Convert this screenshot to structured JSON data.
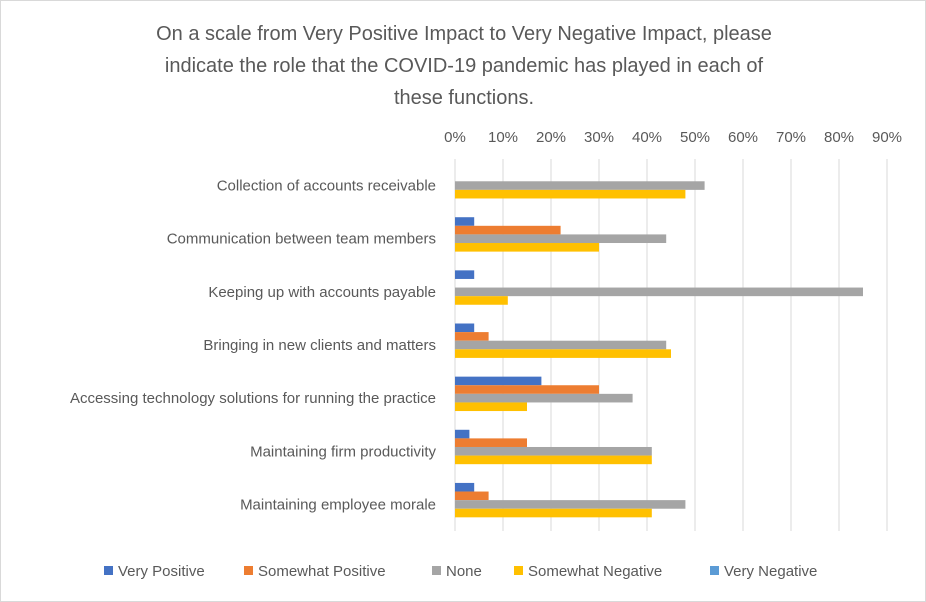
{
  "chart_data": {
    "type": "bar",
    "orientation": "horizontal",
    "title": "On a scale from Very Positive Impact to Very Negative Impact, please indicate the role that the COVID-19 pandemic has played in each of these functions.",
    "title_lines": [
      "On a scale from Very Positive Impact to Very Negative Impact, please",
      "indicate the role that the COVID-19 pandemic has played in each of",
      "these functions."
    ],
    "categories": [
      "Collection of accounts receivable",
      "Communication between team members",
      "Keeping up with accounts payable",
      "Bringing in new clients and matters",
      "Accessing technology solutions for running the practice",
      "Maintaining firm productivity",
      "Maintaining employee morale"
    ],
    "series": [
      {
        "name": "Very Positive",
        "color": "#4472c4",
        "values": [
          0,
          4,
          4,
          4,
          18,
          3,
          4
        ]
      },
      {
        "name": "Somewhat Positive",
        "color": "#ed7d31",
        "values": [
          0,
          22,
          0,
          7,
          30,
          15,
          7
        ]
      },
      {
        "name": "None",
        "color": "#a5a5a5",
        "values": [
          52,
          44,
          85,
          44,
          37,
          41,
          48
        ]
      },
      {
        "name": "Somewhat Negative",
        "color": "#ffc000",
        "values": [
          48,
          30,
          11,
          45,
          15,
          41,
          41
        ]
      },
      {
        "name": "Very Negative",
        "color": "#5b9bd5",
        "values": [
          0,
          0,
          0,
          0,
          0,
          0,
          0
        ]
      }
    ],
    "xlim": [
      0,
      90
    ],
    "xticks": [
      "0%",
      "10%",
      "20%",
      "30%",
      "40%",
      "50%",
      "60%",
      "70%",
      "80%",
      "90%"
    ],
    "value_unit": "%",
    "axis_position": "top",
    "grid": true,
    "legend": "bottom",
    "xlabel": "",
    "ylabel": ""
  }
}
